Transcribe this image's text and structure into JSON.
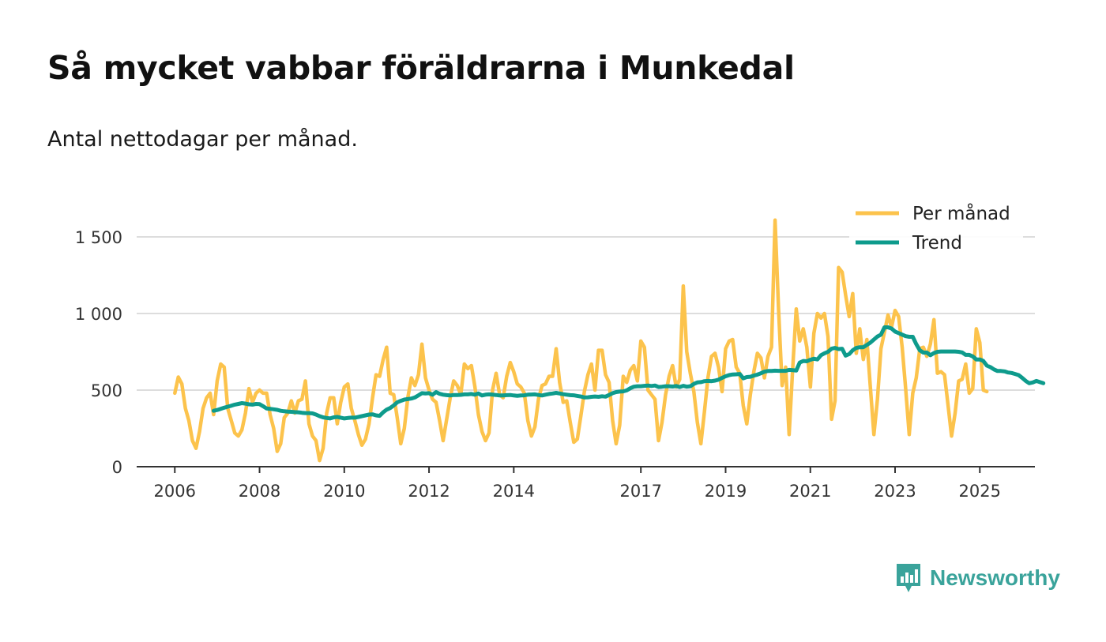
{
  "title": "Så mycket vabbar föräldrarna i Munkedal",
  "subtitle": "Antal nettodagar per månad.",
  "brand": {
    "name": "Newsworthy",
    "icon": "newsworthy-logo-icon",
    "color": "#3aa39b"
  },
  "chart_data": {
    "type": "line",
    "title": "Så mycket vabbar föräldrarna i Munkedal",
    "subtitle": "Antal nettodagar per månad.",
    "xlabel": "",
    "ylabel": "",
    "x_start": "2006-01",
    "xlim": [
      2005.1,
      2026.3
    ],
    "ylim": [
      0,
      1500
    ],
    "y_ticks": [
      0,
      500,
      1000,
      1500
    ],
    "y_tick_labels": [
      "0",
      "500",
      "1 000",
      "1 500"
    ],
    "x_ticks": [
      2006,
      2008,
      2010,
      2012,
      2014,
      2017,
      2019,
      2021,
      2023,
      2025
    ],
    "x_tick_labels": [
      "2006",
      "2008",
      "2010",
      "2012",
      "2014",
      "2017",
      "2019",
      "2021",
      "2023",
      "2025"
    ],
    "grid": true,
    "legend_position": "top-right",
    "series": [
      {
        "name": "Per månad",
        "color": "#fcc34c",
        "start": "2006-01",
        "values": [
          480,
          585,
          540,
          380,
          300,
          170,
          120,
          230,
          380,
          450,
          480,
          340,
          560,
          670,
          650,
          380,
          300,
          220,
          200,
          240,
          350,
          510,
          420,
          480,
          500,
          480,
          480,
          340,
          250,
          100,
          150,
          320,
          350,
          430,
          350,
          430,
          440,
          560,
          280,
          200,
          170,
          40,
          120,
          350,
          450,
          450,
          280,
          420,
          520,
          540,
          380,
          300,
          210,
          140,
          180,
          280,
          450,
          600,
          590,
          700,
          780,
          480,
          470,
          320,
          150,
          250,
          450,
          580,
          530,
          600,
          800,
          580,
          500,
          440,
          420,
          300,
          170,
          310,
          450,
          560,
          530,
          470,
          670,
          640,
          660,
          520,
          340,
          230,
          170,
          220,
          500,
          610,
          470,
          450,
          590,
          680,
          620,
          540,
          520,
          480,
          300,
          200,
          260,
          440,
          530,
          540,
          590,
          590,
          770,
          550,
          420,
          430,
          290,
          160,
          180,
          330,
          490,
          600,
          670,
          500,
          760,
          760,
          600,
          550,
          300,
          150,
          270,
          590,
          550,
          630,
          660,
          560,
          820,
          780,
          500,
          470,
          440,
          170,
          290,
          470,
          590,
          660,
          520,
          570,
          1180,
          750,
          610,
          490,
          290,
          150,
          360,
          580,
          720,
          740,
          650,
          490,
          770,
          820,
          830,
          650,
          610,
          400,
          280,
          470,
          620,
          740,
          710,
          580,
          720,
          780,
          1610,
          1030,
          530,
          650,
          210,
          640,
          1030,
          820,
          900,
          780,
          520,
          870,
          1000,
          970,
          1000,
          850,
          310,
          430,
          1300,
          1270,
          1120,
          980,
          1130,
          740,
          900,
          700,
          830,
          520,
          210,
          440,
          770,
          880,
          990,
          910,
          1020,
          980,
          780,
          510,
          210,
          480,
          580,
          770,
          780,
          720,
          800,
          960,
          610,
          620,
          600,
          400,
          200,
          350,
          560,
          570,
          670,
          480,
          510,
          900,
          810,
          500,
          490
        ]
      },
      {
        "name": "Trend",
        "color": "#0e9b8c",
        "start": "2006-12",
        "values": [
          365,
          370,
          378,
          385,
          392,
          398,
          405,
          410,
          415,
          412,
          407,
          405,
          410,
          408,
          395,
          380,
          378,
          375,
          371,
          365,
          362,
          360,
          358,
          356,
          355,
          352,
          350,
          350,
          348,
          340,
          330,
          322,
          318,
          315,
          322,
          325,
          320,
          315,
          318,
          320,
          320,
          325,
          330,
          335,
          340,
          342,
          335,
          332,
          355,
          372,
          383,
          400,
          420,
          430,
          438,
          441,
          445,
          452,
          466,
          480,
          478,
          480,
          470,
          487,
          476,
          470,
          467,
          465,
          468,
          468,
          469,
          472,
          472,
          475,
          470,
          478,
          465,
          470,
          472,
          470,
          468,
          465,
          465,
          467,
          468,
          465,
          463,
          465,
          466,
          470,
          471,
          472,
          468,
          465,
          470,
          475,
          478,
          482,
          478,
          473,
          470,
          467,
          466,
          462,
          458,
          452,
          453,
          456,
          458,
          456,
          460,
          457,
          468,
          480,
          487,
          490,
          492,
          498,
          512,
          522,
          525,
          525,
          528,
          530,
          527,
          530,
          520,
          522,
          525,
          525,
          523,
          527,
          520,
          528,
          522,
          525,
          540,
          550,
          552,
          558,
          560,
          558,
          562,
          568,
          580,
          590,
          598,
          602,
          603,
          605,
          577,
          585,
          587,
          595,
          601,
          610,
          620,
          625,
          625,
          627,
          626,
          626,
          626,
          632,
          630,
          628,
          680,
          690,
          688,
          698,
          705,
          700,
          728,
          740,
          750,
          770,
          775,
          768,
          770,
          725,
          735,
          760,
          775,
          780,
          780,
          795,
          810,
          830,
          850,
          862,
          910,
          910,
          902,
          882,
          872,
          862,
          852,
          848,
          848,
          800,
          760,
          745,
          745,
          728,
          742,
          750,
          752,
          752,
          752,
          752,
          752,
          750,
          746,
          730,
          730,
          720,
          700,
          700,
          690,
          660,
          650,
          635,
          625,
          625,
          622,
          615,
          612,
          605,
          598,
          580,
          560,
          545,
          550,
          560,
          552,
          545
        ]
      }
    ]
  }
}
